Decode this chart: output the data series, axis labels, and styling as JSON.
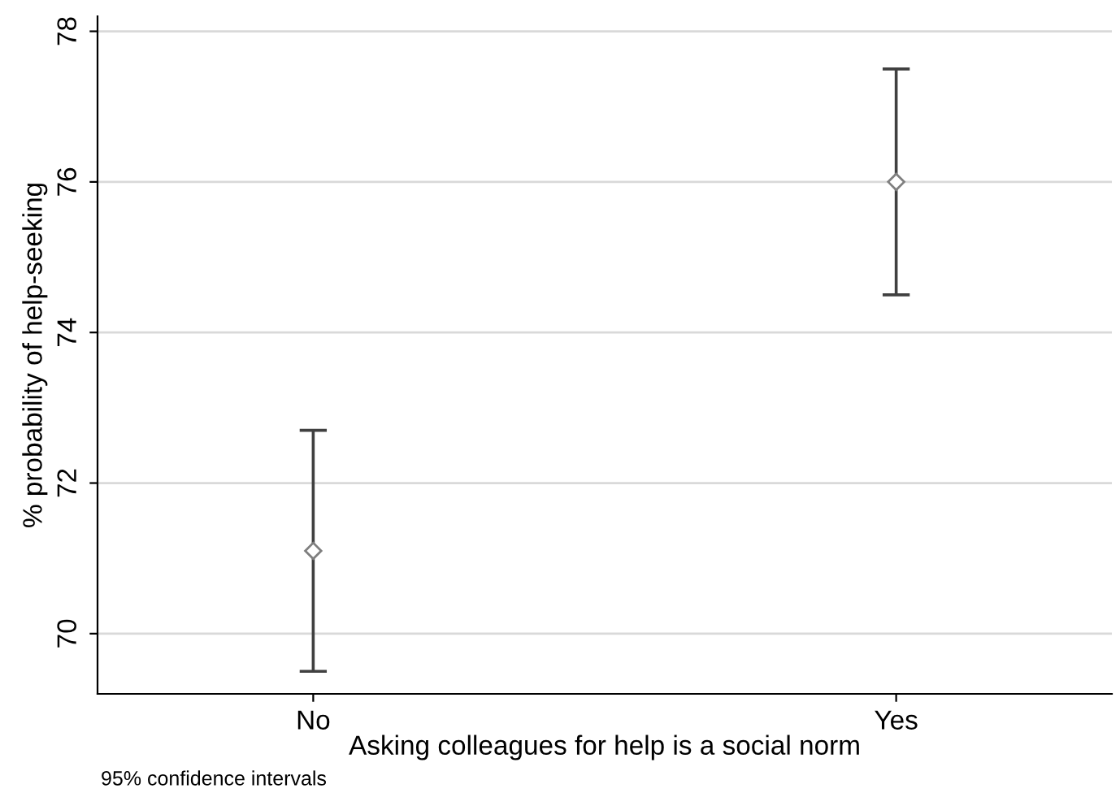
{
  "chart_data": {
    "type": "scatter",
    "xlabel": "Asking colleagues for help is a social norm",
    "ylabel": "% probability of help-seeking",
    "categories": [
      "No",
      "Yes"
    ],
    "series": [
      {
        "color": "#7f7f7f",
        "values": [
          71.1,
          76.0
        ],
        "errors": [
          [
            69.5,
            72.7
          ],
          [
            74.5,
            77.5
          ]
        ]
      }
    ],
    "ylim": [
      69.2,
      78.2
    ],
    "yticks": [
      70,
      72,
      74,
      76,
      78
    ],
    "grid": "y",
    "marker": "diamond",
    "annotations": [
      "95% confidence intervals"
    ]
  }
}
